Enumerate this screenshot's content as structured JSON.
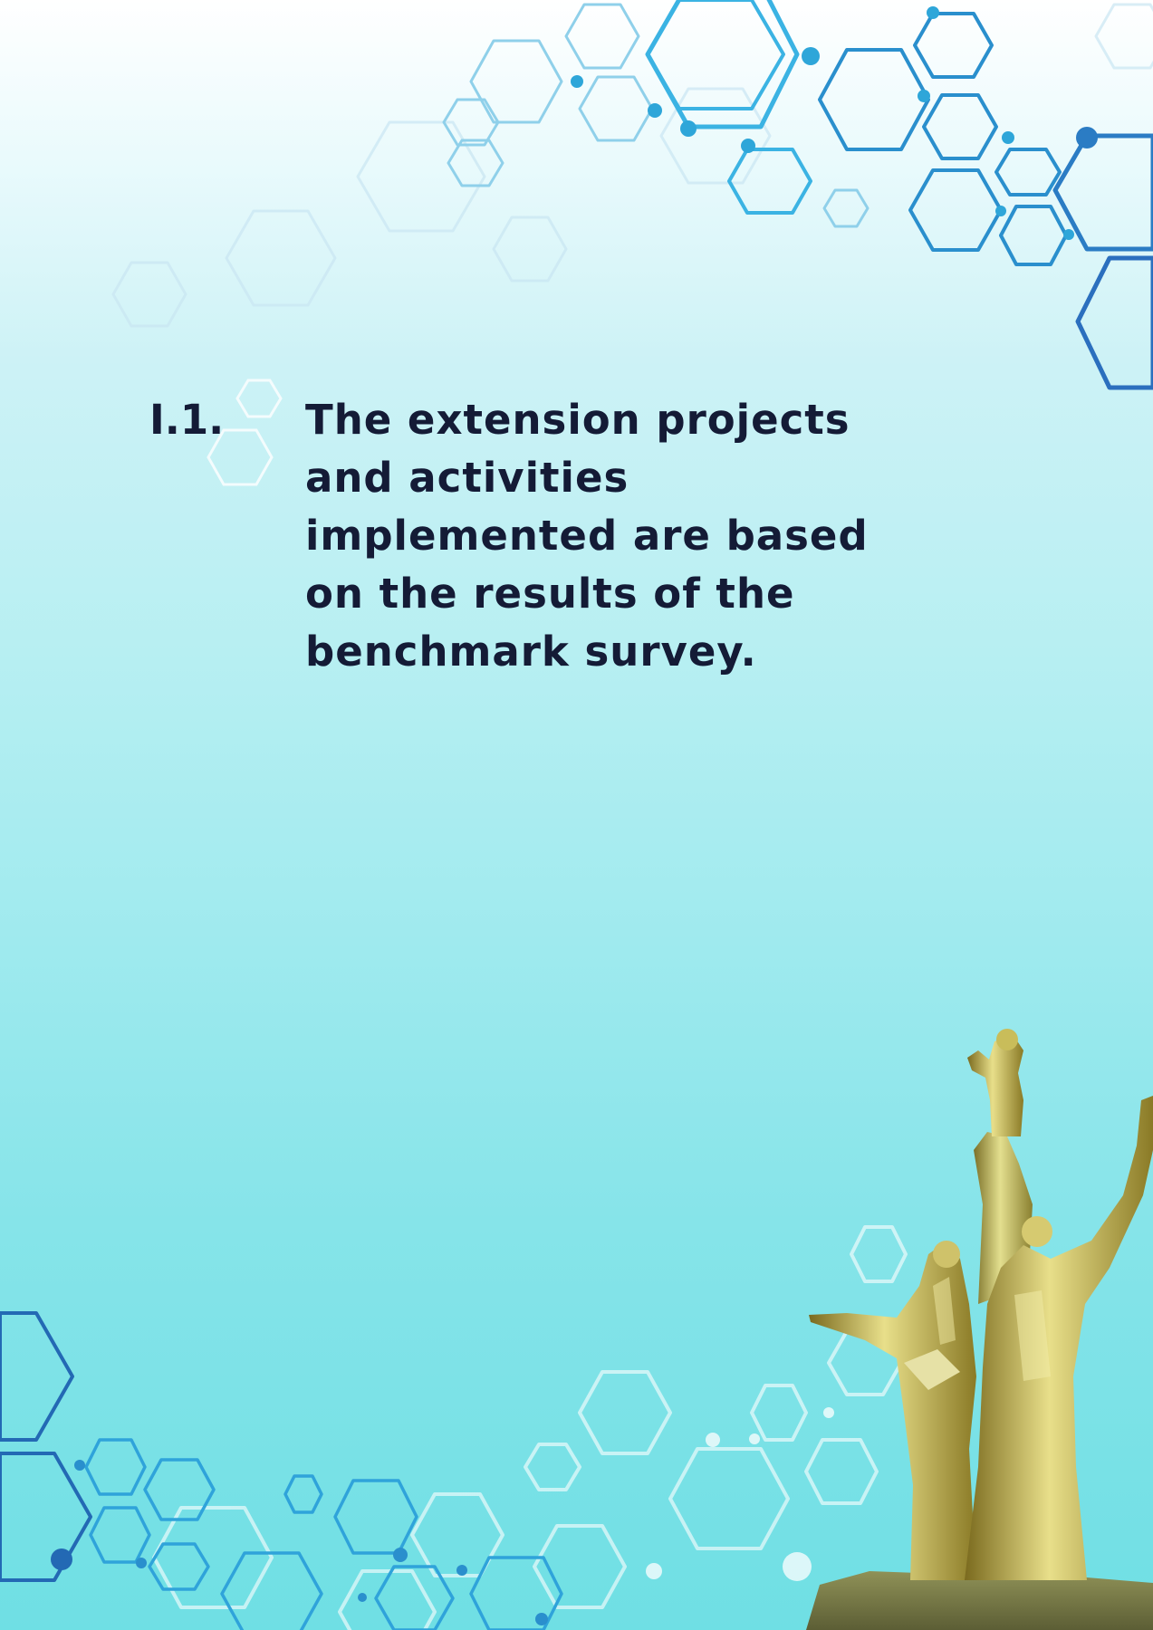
{
  "section": {
    "number": "I.1.",
    "text": "The extension projects and activities implemented are based on the results of the benchmark survey."
  },
  "decoration": {
    "hex_colors": [
      "#2ea6d9",
      "#1f6fb8",
      "#9fdff0",
      "#ffffff"
    ],
    "statue": "golden-monument"
  }
}
